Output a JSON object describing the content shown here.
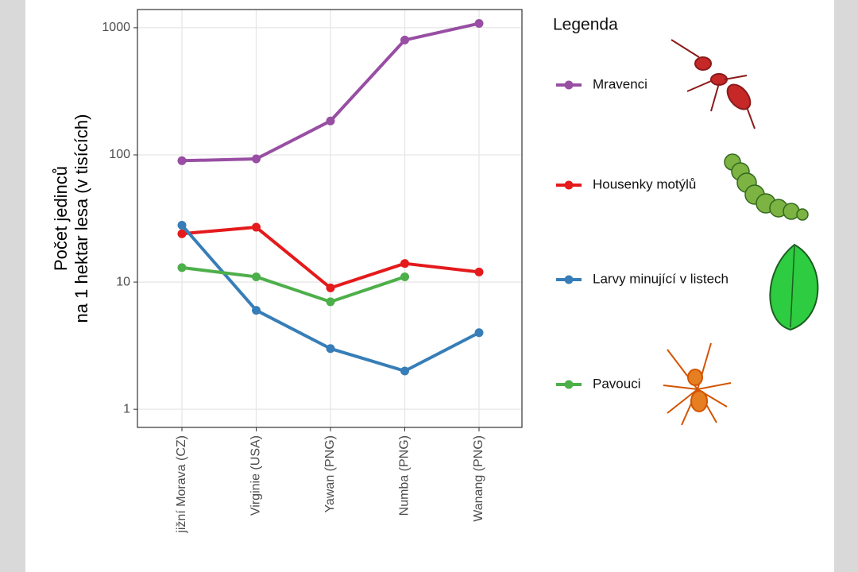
{
  "chart_data": {
    "type": "line",
    "ylabel": [
      "Počet jedinců",
      "na 1 hektar lesa (v tisících)"
    ],
    "categories": [
      "jižní Morava (CZ)",
      "Virginie (USA)",
      "Yawan (PNG)",
      "Numba (PNG)",
      "Wanang (PNG)"
    ],
    "series": [
      {
        "name": "Mravenci",
        "color": "#984ea3",
        "values": [
          90,
          93,
          185,
          800,
          1080
        ]
      },
      {
        "name": "Housenky motýlů",
        "color": "#e41a1c",
        "values": [
          24,
          27,
          9,
          14,
          12
        ]
      },
      {
        "name": "Larvy minující v listech",
        "color": "#377eb8",
        "values": [
          28,
          6,
          3,
          2,
          4
        ]
      },
      {
        "name": "Pavouci",
        "color": "#4daf4a",
        "values": [
          13,
          11,
          7,
          11,
          null
        ]
      }
    ],
    "ylim": [
      0.72,
      1390
    ],
    "yticks": [
      1,
      10,
      100,
      1000
    ],
    "log_y": true,
    "grid": true,
    "legend_title": "Legenda",
    "legend_position": "right"
  }
}
